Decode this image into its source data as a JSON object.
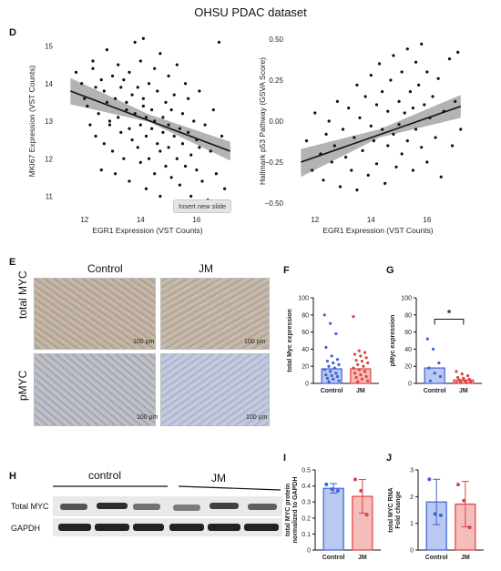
{
  "title": "OHSU PDAC dataset",
  "panels": {
    "D": "D",
    "E": "E",
    "F": "F",
    "G": "G",
    "H": "H",
    "I": "I",
    "J": "J"
  },
  "tooltip": "Insert new slide",
  "ihc": {
    "columns": [
      "Control",
      "JM"
    ],
    "rows": [
      "total MYC",
      "pMYC"
    ],
    "scalebar": "100 µm",
    "colors": {
      "total_myc": "#b8a999",
      "pmyc_control": "#aeb2c4",
      "pmyc_jm": "#b7c0d6"
    }
  },
  "blot": {
    "groups": [
      "control",
      "JM"
    ],
    "rows": [
      "Total MYC",
      "GAPDH"
    ]
  },
  "colors": {
    "control": "#3b63d6",
    "jm": "#e0413f",
    "line": "#111111",
    "band": "#9a9a9a"
  },
  "chart_data": [
    {
      "id": "D-left",
      "type": "scatter",
      "title": "",
      "xlabel": "EGR1 Expression (VST Counts)",
      "ylabel": "MKI67 Expression (VST Counts)",
      "xlim": [
        11,
        17.5
      ],
      "ylim": [
        10.6,
        15.4
      ],
      "xticks": [
        12,
        14,
        16
      ],
      "yticks": [
        11,
        12,
        13,
        14,
        15
      ],
      "fit": {
        "x": [
          11.5,
          17.2
        ],
        "y": [
          13.8,
          12.2
        ]
      },
      "band": {
        "x": [
          11.5,
          14.3,
          17.2
        ],
        "lo": [
          13.45,
          12.98,
          11.95
        ],
        "hi": [
          14.15,
          13.18,
          12.45
        ]
      },
      "points": [
        [
          11.7,
          14.3
        ],
        [
          11.9,
          14.0
        ],
        [
          12.0,
          13.6
        ],
        [
          12.1,
          13.4
        ],
        [
          12.2,
          12.9
        ],
        [
          12.3,
          14.4
        ],
        [
          12.3,
          14.6
        ],
        [
          12.4,
          13.9
        ],
        [
          12.4,
          12.6
        ],
        [
          12.5,
          13.2
        ],
        [
          12.6,
          14.1
        ],
        [
          12.6,
          11.7
        ],
        [
          12.7,
          13.8
        ],
        [
          12.7,
          12.4
        ],
        [
          12.8,
          13.5
        ],
        [
          12.8,
          14.9
        ],
        [
          12.9,
          12.9
        ],
        [
          12.9,
          13.0
        ],
        [
          13.0,
          14.2
        ],
        [
          13.0,
          12.2
        ],
        [
          13.1,
          13.6
        ],
        [
          13.1,
          11.6
        ],
        [
          13.2,
          13.1
        ],
        [
          13.2,
          14.5
        ],
        [
          13.3,
          12.7
        ],
        [
          13.3,
          13.9
        ],
        [
          13.4,
          14.1
        ],
        [
          13.4,
          12.0
        ],
        [
          13.5,
          13.5
        ],
        [
          13.5,
          13.3
        ],
        [
          13.6,
          12.8
        ],
        [
          13.6,
          14.3
        ],
        [
          13.6,
          11.4
        ],
        [
          13.7,
          13.7
        ],
        [
          13.7,
          12.5
        ],
        [
          13.8,
          15.1
        ],
        [
          13.8,
          13.2
        ],
        [
          13.9,
          12.3
        ],
        [
          13.9,
          13.9
        ],
        [
          14.0,
          14.6
        ],
        [
          14.0,
          12.9
        ],
        [
          14.0,
          11.9
        ],
        [
          14.1,
          13.4
        ],
        [
          14.1,
          13.6
        ],
        [
          14.1,
          15.2
        ],
        [
          14.2,
          12.6
        ],
        [
          14.2,
          13.1
        ],
        [
          14.2,
          11.2
        ],
        [
          14.3,
          14.0
        ],
        [
          14.3,
          12.0
        ],
        [
          14.4,
          13.3
        ],
        [
          14.4,
          12.8
        ],
        [
          14.5,
          14.4
        ],
        [
          14.5,
          11.6
        ],
        [
          14.5,
          13.0
        ],
        [
          14.6,
          12.4
        ],
        [
          14.6,
          13.8
        ],
        [
          14.7,
          12.2
        ],
        [
          14.7,
          14.8
        ],
        [
          14.7,
          11.0
        ],
        [
          14.8,
          13.1
        ],
        [
          14.8,
          12.7
        ],
        [
          14.9,
          13.5
        ],
        [
          14.9,
          11.8
        ],
        [
          15.0,
          12.9
        ],
        [
          15.0,
          14.2
        ],
        [
          15.0,
          12.3
        ],
        [
          15.1,
          13.3
        ],
        [
          15.1,
          11.5
        ],
        [
          15.2,
          12.6
        ],
        [
          15.2,
          13.7
        ],
        [
          15.3,
          12.0
        ],
        [
          15.3,
          14.5
        ],
        [
          15.4,
          12.8
        ],
        [
          15.4,
          11.3
        ],
        [
          15.5,
          13.2
        ],
        [
          15.5,
          12.4
        ],
        [
          15.6,
          14.0
        ],
        [
          15.6,
          11.8
        ],
        [
          15.7,
          12.7
        ],
        [
          15.7,
          13.6
        ],
        [
          15.8,
          12.1
        ],
        [
          15.8,
          11.0
        ],
        [
          15.9,
          13.0
        ],
        [
          16.0,
          12.5
        ],
        [
          16.0,
          11.7
        ],
        [
          16.1,
          13.8
        ],
        [
          16.1,
          12.3
        ],
        [
          16.2,
          11.4
        ],
        [
          16.3,
          12.9
        ],
        [
          16.4,
          10.9
        ],
        [
          16.5,
          12.2
        ],
        [
          16.6,
          13.3
        ],
        [
          16.7,
          11.6
        ],
        [
          16.8,
          15.1
        ],
        [
          16.9,
          12.6
        ],
        [
          17.0,
          11.2
        ]
      ]
    },
    {
      "id": "D-right",
      "type": "scatter",
      "title": "",
      "xlabel": "EGR1 Expression (VST Counts)",
      "ylabel": "Hallmark p53 Pathway (GSVA Score)",
      "xlim": [
        11,
        17.5
      ],
      "ylim": [
        -0.55,
        0.55
      ],
      "xticks": [
        12,
        14,
        16
      ],
      "yticks": [
        -0.5,
        -0.25,
        0.0,
        0.25,
        0.5
      ],
      "ytickLabels": [
        "−0.50",
        "−0.25",
        "0.00",
        "0.25",
        "0.50"
      ],
      "fit": {
        "x": [
          11.5,
          17.2
        ],
        "y": [
          -0.25,
          0.09
        ]
      },
      "band": {
        "x": [
          11.5,
          14.3,
          17.2
        ],
        "lo": [
          -0.34,
          -0.1,
          0.02
        ],
        "hi": [
          -0.17,
          -0.05,
          0.16
        ]
      },
      "points": [
        [
          11.7,
          -0.12
        ],
        [
          11.9,
          -0.3
        ],
        [
          12.0,
          0.05
        ],
        [
          12.2,
          -0.2
        ],
        [
          12.3,
          -0.36
        ],
        [
          12.4,
          -0.08
        ],
        [
          12.5,
          0.0
        ],
        [
          12.6,
          -0.25
        ],
        [
          12.7,
          -0.15
        ],
        [
          12.8,
          0.12
        ],
        [
          12.9,
          -0.4
        ],
        [
          13.0,
          -0.05
        ],
        [
          13.1,
          -0.22
        ],
        [
          13.2,
          0.08
        ],
        [
          13.3,
          -0.3
        ],
        [
          13.4,
          -0.1
        ],
        [
          13.5,
          0.22
        ],
        [
          13.5,
          -0.42
        ],
        [
          13.6,
          0.02
        ],
        [
          13.7,
          -0.18
        ],
        [
          13.8,
          0.15
        ],
        [
          13.9,
          -0.33
        ],
        [
          14.0,
          -0.03
        ],
        [
          14.0,
          0.28
        ],
        [
          14.1,
          -0.12
        ],
        [
          14.2,
          0.1
        ],
        [
          14.2,
          -0.26
        ],
        [
          14.3,
          0.35
        ],
        [
          14.4,
          -0.05
        ],
        [
          14.4,
          0.18
        ],
        [
          14.5,
          -0.38
        ],
        [
          14.6,
          0.06
        ],
        [
          14.6,
          -0.15
        ],
        [
          14.7,
          0.25
        ],
        [
          14.8,
          -0.08
        ],
        [
          14.8,
          0.4
        ],
        [
          14.9,
          -0.28
        ],
        [
          15.0,
          0.12
        ],
        [
          15.0,
          -0.02
        ],
        [
          15.1,
          0.3
        ],
        [
          15.1,
          -0.2
        ],
        [
          15.2,
          0.05
        ],
        [
          15.3,
          0.44
        ],
        [
          15.3,
          -0.12
        ],
        [
          15.4,
          0.18
        ],
        [
          15.5,
          -0.3
        ],
        [
          15.5,
          0.08
        ],
        [
          15.6,
          0.36
        ],
        [
          15.6,
          -0.05
        ],
        [
          15.7,
          0.22
        ],
        [
          15.8,
          -0.16
        ],
        [
          15.8,
          0.47
        ],
        [
          15.9,
          0.1
        ],
        [
          16.0,
          -0.25
        ],
        [
          16.0,
          0.3
        ],
        [
          16.1,
          0.02
        ],
        [
          16.2,
          0.15
        ],
        [
          16.3,
          -0.1
        ],
        [
          16.4,
          0.26
        ],
        [
          16.5,
          -0.34
        ],
        [
          16.6,
          0.06
        ],
        [
          16.8,
          0.38
        ],
        [
          16.9,
          -0.15
        ],
        [
          17.0,
          0.12
        ],
        [
          17.1,
          0.42
        ],
        [
          17.2,
          -0.05
        ]
      ]
    },
    {
      "id": "F",
      "type": "bar",
      "ylabel": "total Myc expression",
      "categories": [
        "Control",
        "JM"
      ],
      "ylim": [
        0,
        100
      ],
      "yticks": [
        0,
        20,
        40,
        60,
        80,
        100
      ],
      "values": [
        17,
        17
      ],
      "points": [
        [
          80,
          70,
          58,
          42,
          32,
          28,
          26,
          24,
          22,
          20,
          18,
          16,
          14,
          12,
          10,
          9,
          8,
          6,
          5,
          3,
          2
        ],
        [
          78,
          38,
          36,
          34,
          32,
          30,
          27,
          26,
          24,
          22,
          20,
          18,
          16,
          14,
          12,
          10,
          8,
          7,
          5,
          3,
          2
        ]
      ]
    },
    {
      "id": "G",
      "type": "bar",
      "ylabel": "pMyc expression",
      "categories": [
        "Control",
        "JM"
      ],
      "ylim": [
        0,
        100
      ],
      "yticks": [
        0,
        20,
        40,
        60,
        80,
        100
      ],
      "values": [
        18,
        4
      ],
      "significance": "*",
      "points": [
        [
          52,
          40,
          24,
          18,
          12,
          8,
          3
        ],
        [
          14,
          11,
          9,
          7,
          6,
          5,
          4,
          3,
          2,
          2,
          1,
          1
        ]
      ]
    },
    {
      "id": "I",
      "type": "bar",
      "ylabel": "total MYC protein\nnormalized to GAPDH",
      "categories": [
        "Control",
        "JM"
      ],
      "ylim": [
        0,
        0.5
      ],
      "yticks": [
        0,
        0.1,
        0.2,
        0.3,
        0.4,
        0.5
      ],
      "values": [
        0.385,
        0.335
      ],
      "errors": [
        0.03,
        0.105
      ],
      "points": [
        [
          0.41,
          0.38,
          0.37
        ],
        [
          0.44,
          0.37,
          0.22
        ]
      ]
    },
    {
      "id": "J",
      "type": "bar",
      "ylabel": "total MYC RNA\nFold change",
      "categories": [
        "Control",
        "JM"
      ],
      "ylim": [
        0,
        3
      ],
      "yticks": [
        0,
        1,
        2,
        3
      ],
      "values": [
        1.8,
        1.72
      ],
      "errors": [
        0.85,
        0.85
      ],
      "points": [
        [
          2.65,
          1.35,
          1.3
        ],
        [
          2.45,
          1.85,
          0.85
        ]
      ]
    }
  ]
}
